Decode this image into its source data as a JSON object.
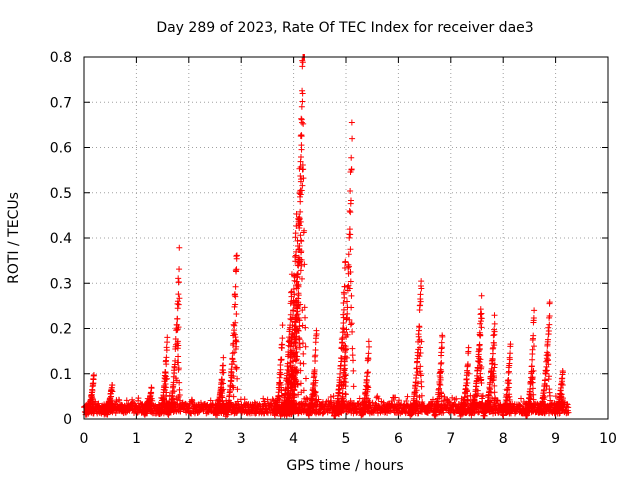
{
  "chart_data": {
    "type": "scatter",
    "title": "Day 289 of 2023, Rate Of TEC Index for receiver dae3",
    "xlabel": "GPS time / hours",
    "ylabel": "ROTI / TECUs",
    "xlim": [
      0,
      10
    ],
    "ylim": [
      0,
      0.8
    ],
    "xticks": [
      "0",
      "1",
      "2",
      "3",
      "4",
      "5",
      "6",
      "7",
      "8",
      "9",
      "10"
    ],
    "yticks": [
      "0",
      "0.1",
      "0.2",
      "0.3",
      "0.4",
      "0.5",
      "0.6",
      "0.7",
      "0.8"
    ],
    "grid": true,
    "marker": "+",
    "color": "#ff0000",
    "x_range_of_data": [
      0,
      9.25
    ],
    "peaks": [
      {
        "x": 0.15,
        "y": 0.06
      },
      {
        "x": 0.5,
        "y": 0.05
      },
      {
        "x": 1.25,
        "y": 0.045
      },
      {
        "x": 1.55,
        "y": 0.105
      },
      {
        "x": 1.78,
        "y": 0.245
      },
      {
        "x": 2.62,
        "y": 0.08
      },
      {
        "x": 2.88,
        "y": 0.275
      },
      {
        "x": 3.75,
        "y": 0.12
      },
      {
        "x": 3.93,
        "y": 0.22
      },
      {
        "x": 4.02,
        "y": 0.335
      },
      {
        "x": 4.08,
        "y": 0.4
      },
      {
        "x": 4.13,
        "y": 0.565
      },
      {
        "x": 4.17,
        "y": 0.8
      },
      {
        "x": 4.4,
        "y": 0.12
      },
      {
        "x": 4.95,
        "y": 0.245
      },
      {
        "x": 5.08,
        "y": 0.49
      },
      {
        "x": 5.4,
        "y": 0.1
      },
      {
        "x": 6.4,
        "y": 0.22
      },
      {
        "x": 6.8,
        "y": 0.11
      },
      {
        "x": 7.3,
        "y": 0.09
      },
      {
        "x": 7.55,
        "y": 0.185
      },
      {
        "x": 7.8,
        "y": 0.155
      },
      {
        "x": 8.1,
        "y": 0.1
      },
      {
        "x": 8.55,
        "y": 0.14
      },
      {
        "x": 8.85,
        "y": 0.175
      },
      {
        "x": 9.1,
        "y": 0.07
      }
    ]
  }
}
